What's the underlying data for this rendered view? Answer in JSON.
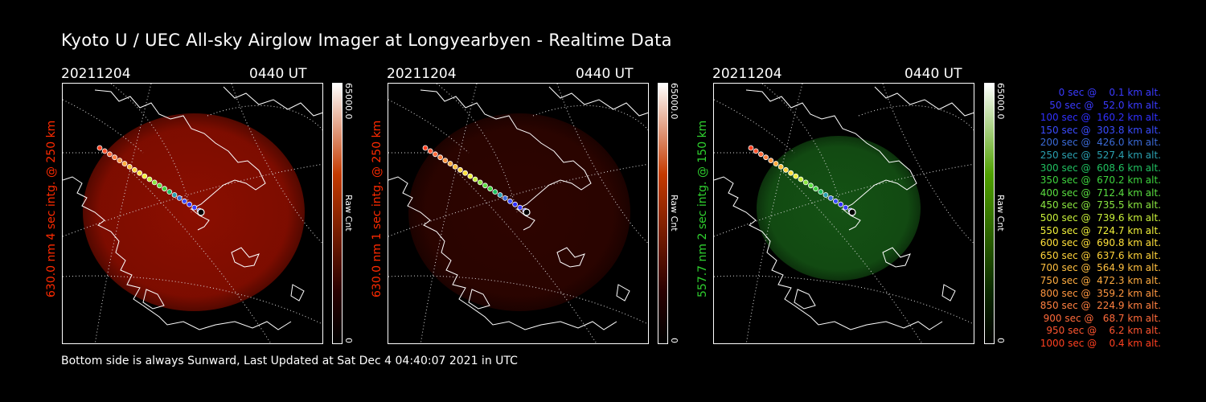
{
  "title": "Kyoto U / UEC All-sky Airglow Imager at Longyearbyen - Realtime Data",
  "footer": "Bottom side is always Sunward, Last Updated at Sat Dec  4 04:40:07 2021 in UTC",
  "panels": [
    {
      "date": "20211204",
      "time": "0440 UT",
      "ylabel": "630.0 nm 4 sec intg. @ 250 km",
      "label_color": "#ff2a00",
      "image_color": "#8b0e00",
      "cbar_top": "#ffffff",
      "cbar_mid": "#c43a00",
      "cbar_low": "#2a0000",
      "cbar_max": "65000.0",
      "cbar_unit": "Raw Cnt",
      "cbar_min": "0"
    },
    {
      "date": "20211204",
      "time": "0440 UT",
      "ylabel": "630.0 nm 1 sec intg. @ 250 km",
      "label_color": "#ff2a00",
      "image_color": "#2e0400",
      "cbar_top": "#ffffff",
      "cbar_mid": "#c43a00",
      "cbar_low": "#2a0000",
      "cbar_max": "65000.0",
      "cbar_unit": "Raw Cnt",
      "cbar_min": "0"
    },
    {
      "date": "20211204",
      "time": "0440 UT",
      "ylabel": "557.7 nm 2 sec intg. @ 150 km",
      "label_color": "#2fd12f",
      "image_color": "#145214",
      "cbar_top": "#ffffff",
      "cbar_mid": "#4fa000",
      "cbar_low": "#0b2a00",
      "cbar_max": "65000.0",
      "cbar_unit": "Raw Cnt",
      "cbar_min": "0"
    }
  ],
  "legend": [
    {
      "text": "   0 sec @    0.1 km alt.",
      "color": "#3a3aff"
    },
    {
      "text": "  50 sec @   52.0 km alt.",
      "color": "#3a3aff"
    },
    {
      "text": " 100 sec @  160.2 km alt.",
      "color": "#3030ff"
    },
    {
      "text": " 150 sec @  303.8 km alt.",
      "color": "#3a4cff"
    },
    {
      "text": " 200 sec @  426.0 km alt.",
      "color": "#3a6ad6"
    },
    {
      "text": " 250 sec @  527.4 km alt.",
      "color": "#2aa0b0"
    },
    {
      "text": " 300 sec @  608.6 km alt.",
      "color": "#20c060"
    },
    {
      "text": " 350 sec @  670.2 km alt.",
      "color": "#3ed43e"
    },
    {
      "text": " 400 sec @  712.4 km alt.",
      "color": "#5ade40"
    },
    {
      "text": " 450 sec @  735.5 km alt.",
      "color": "#8ae640"
    },
    {
      "text": " 500 sec @  739.6 km alt.",
      "color": "#c8f03a"
    },
    {
      "text": " 550 sec @  724.7 km alt.",
      "color": "#f0f03a"
    },
    {
      "text": " 600 sec @  690.8 km alt.",
      "color": "#ffe03a"
    },
    {
      "text": " 650 sec @  637.6 km alt.",
      "color": "#ffd23a"
    },
    {
      "text": " 700 sec @  564.9 km alt.",
      "color": "#ffc040"
    },
    {
      "text": " 750 sec @  472.3 km alt.",
      "color": "#ffac40"
    },
    {
      "text": " 800 sec @  359.2 km alt.",
      "color": "#ff9640"
    },
    {
      "text": " 850 sec @  224.9 km alt.",
      "color": "#ff8040"
    },
    {
      "text": " 900 sec @   68.7 km alt.",
      "color": "#ff6a3a"
    },
    {
      "text": " 950 sec @    6.2 km alt.",
      "color": "#ff5530"
    },
    {
      "text": "1000 sec @    0.4 km alt.",
      "color": "#ff4020"
    }
  ]
}
